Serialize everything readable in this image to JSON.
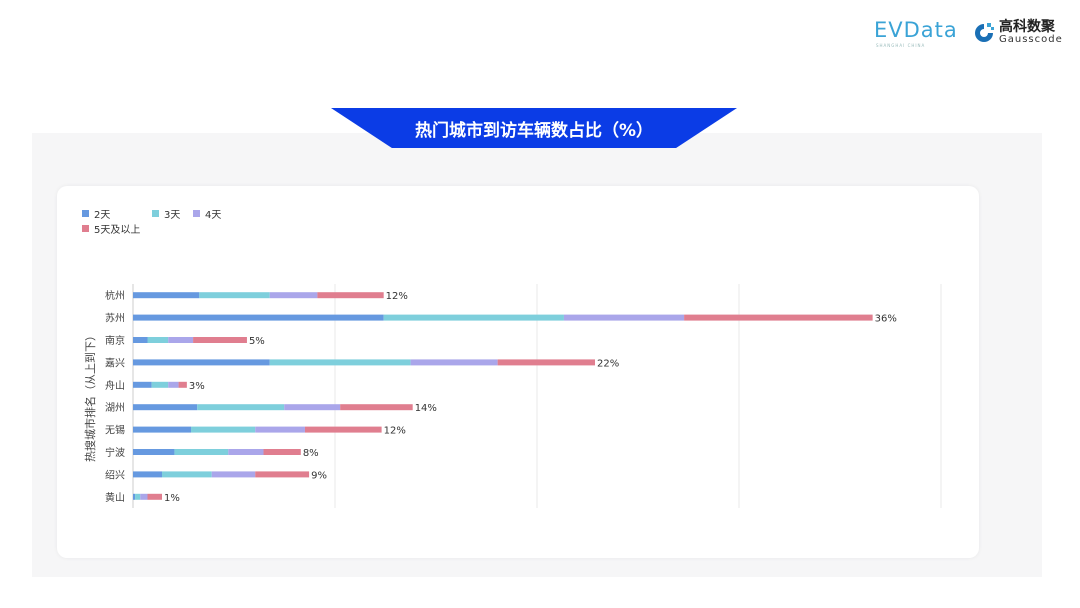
{
  "logos": {
    "evdata": "EVData",
    "evdata_sub": "SHANGHAI CHINA",
    "gauss_cn": "高科数聚",
    "gauss_en": "Gausscode"
  },
  "title": "热门城市到访车辆数占比（%）",
  "chart_data": {
    "type": "bar",
    "orientation": "horizontal",
    "stacked": true,
    "title": "热门城市到访车辆数占比（%）",
    "ylabel": "热搜城市排名（从上到下）",
    "xlabel": "",
    "categories": [
      "杭州",
      "苏州",
      "南京",
      "嘉兴",
      "舟山",
      "湖州",
      "无锡",
      "宁波",
      "绍兴",
      "黄山"
    ],
    "series": [
      {
        "name": "2天",
        "color": "#6699e0",
        "values": [
          3.2,
          12.1,
          0.7,
          6.6,
          0.9,
          3.1,
          2.8,
          2.0,
          1.4,
          0.1
        ]
      },
      {
        "name": "3天",
        "color": "#7ecfdc",
        "values": [
          3.4,
          8.7,
          1.0,
          6.8,
          0.8,
          4.2,
          3.1,
          2.6,
          2.4,
          0.25
        ]
      },
      {
        "name": "4天",
        "color": "#aaa6ea",
        "values": [
          2.3,
          5.8,
          1.2,
          4.2,
          0.5,
          2.7,
          2.4,
          1.7,
          2.1,
          0.35
        ]
      },
      {
        "name": "5天及以上",
        "color": "#e07e8f",
        "values": [
          3.2,
          9.1,
          2.6,
          4.7,
          0.4,
          3.5,
          3.7,
          1.8,
          2.6,
          0.7
        ]
      }
    ],
    "total_labels": [
      "12%",
      "36%",
      "5%",
      "22%",
      "3%",
      "14%",
      "12%",
      "8%",
      "9%",
      "1%"
    ],
    "xlim": [
      0,
      39
    ],
    "grid": true,
    "legend_placement": "top-left"
  }
}
